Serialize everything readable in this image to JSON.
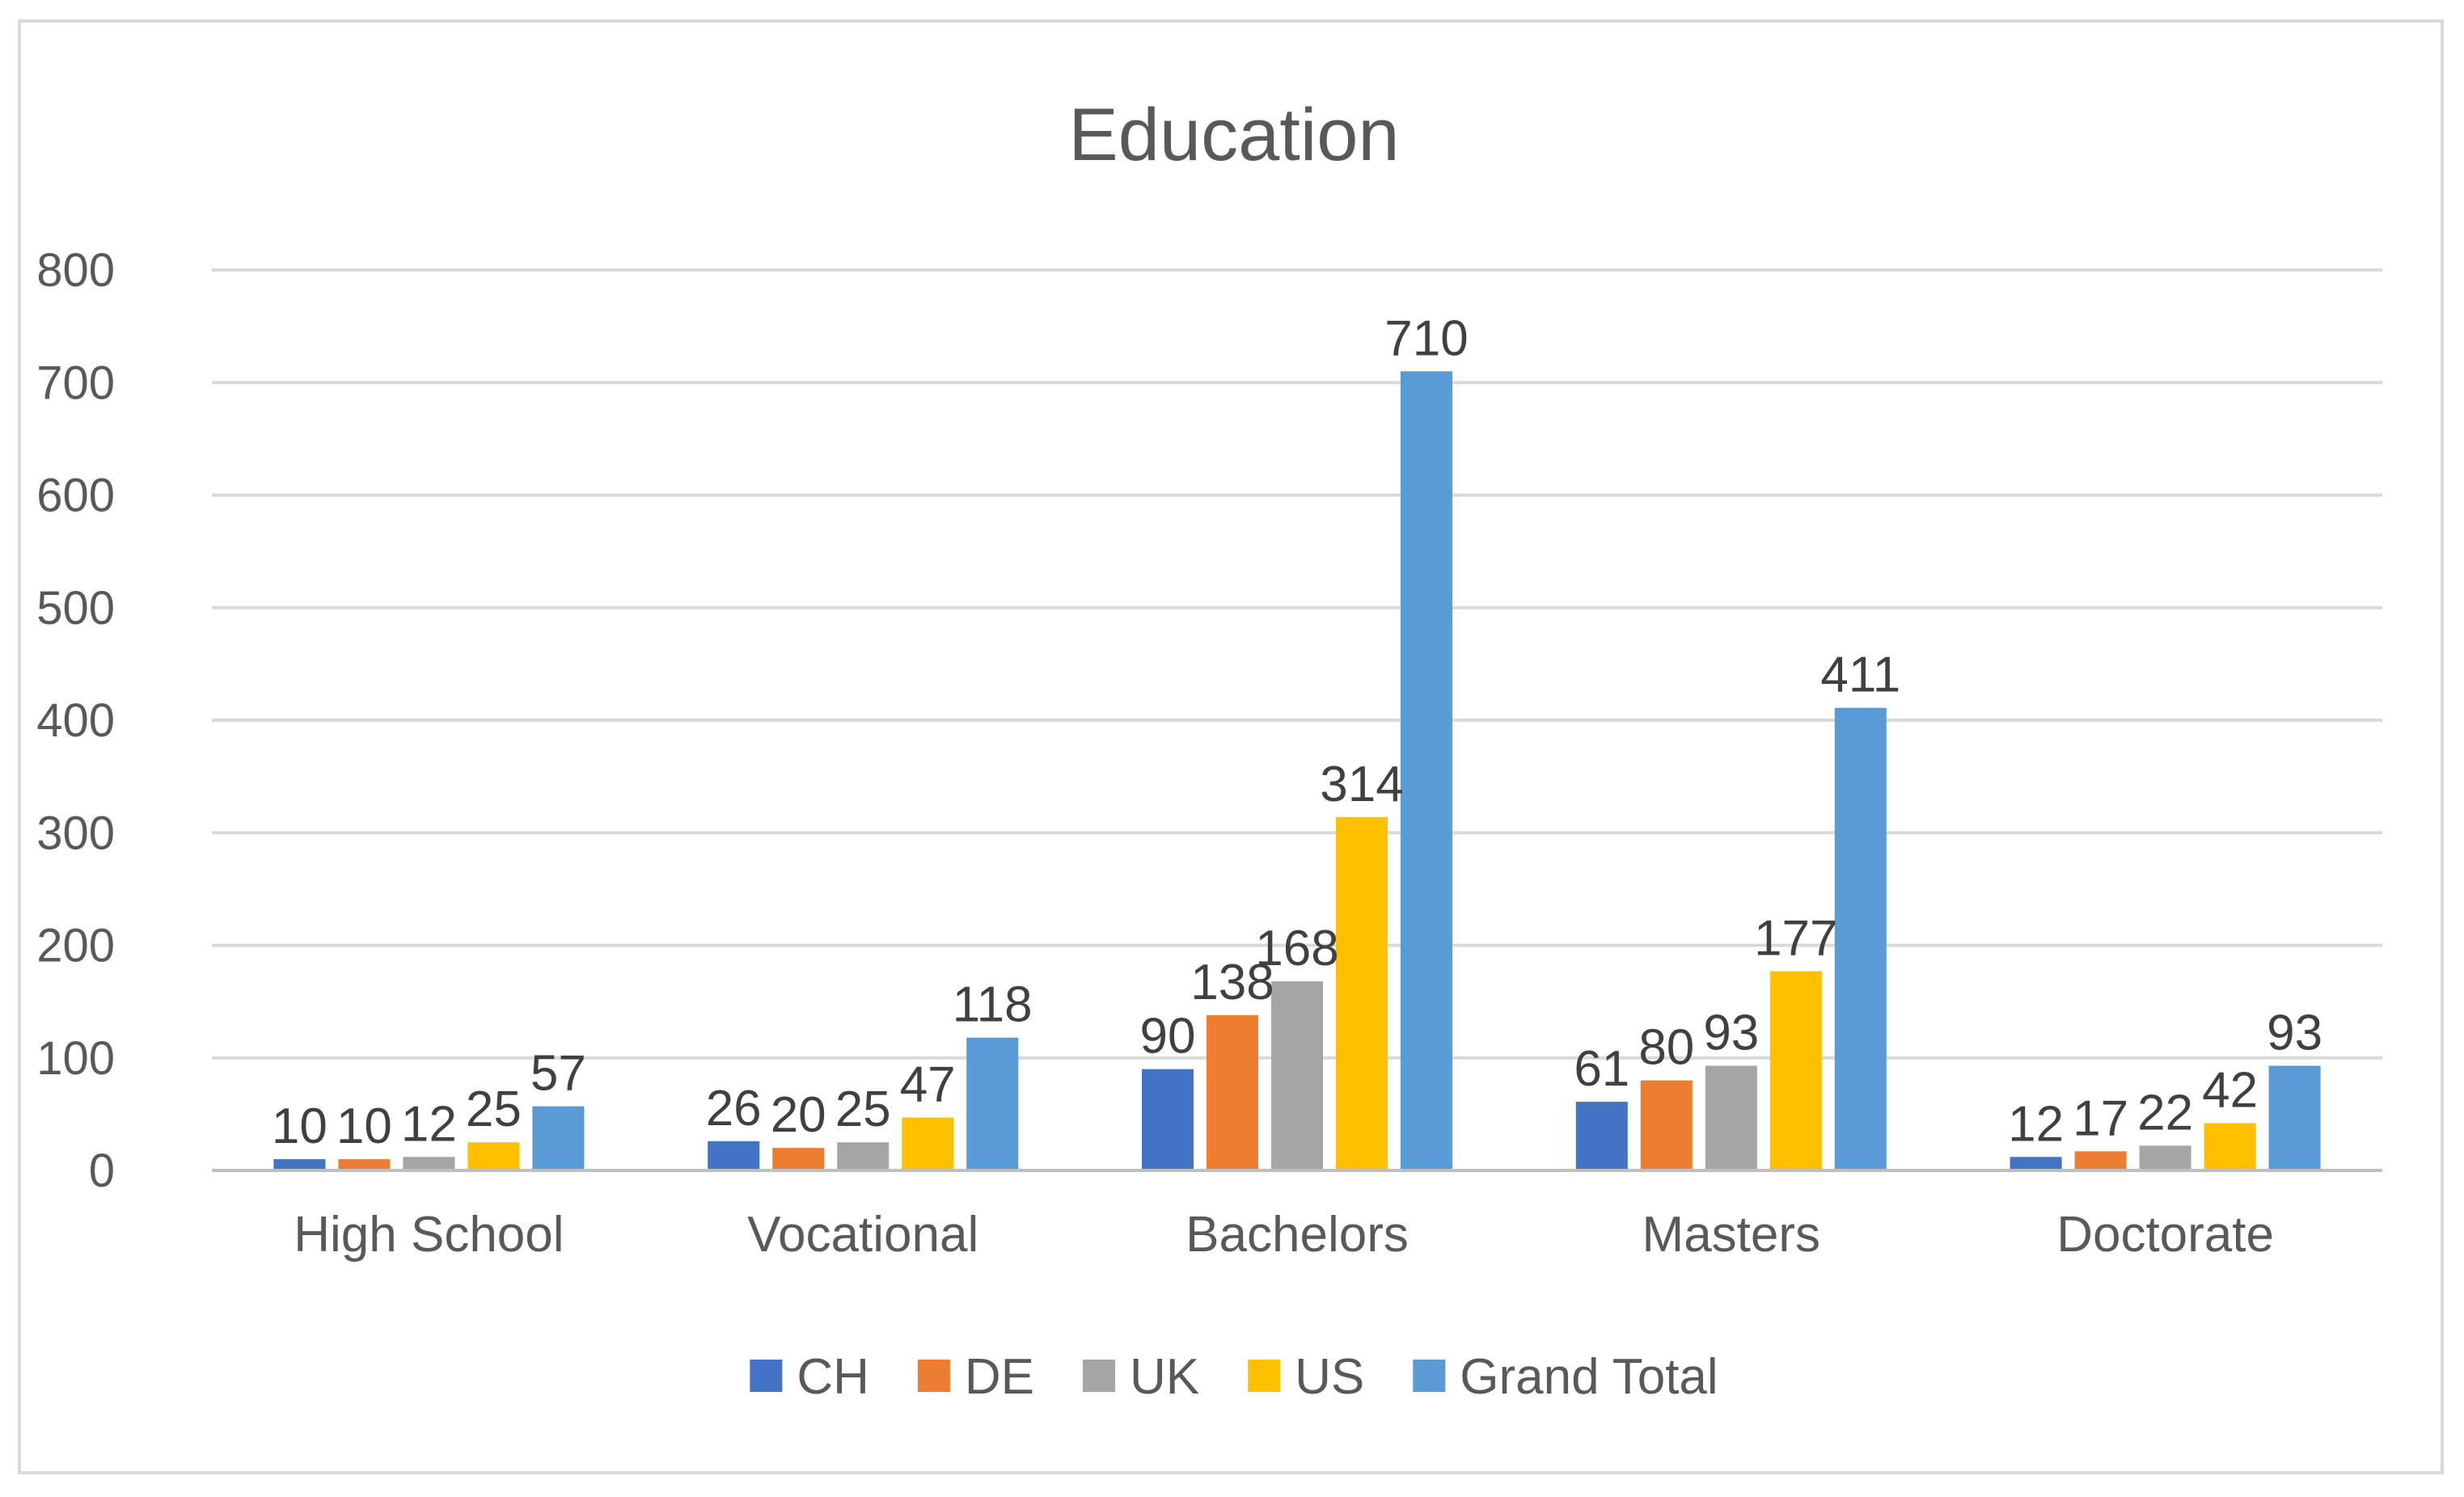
{
  "chart_data": {
    "type": "bar",
    "title": "Education",
    "xlabel": "",
    "ylabel": "",
    "ylim": [
      0,
      800
    ],
    "yticks": [
      0,
      100,
      200,
      300,
      400,
      500,
      600,
      700,
      800
    ],
    "grid": true,
    "legend_position": "bottom",
    "categories": [
      "High School",
      "Vocational",
      "Bachelors",
      "Masters",
      "Doctorate"
    ],
    "series": [
      {
        "name": "CH",
        "color": "#4472C4",
        "values": [
          10,
          26,
          90,
          61,
          12
        ]
      },
      {
        "name": "DE",
        "color": "#ED7D31",
        "values": [
          10,
          20,
          138,
          80,
          17
        ]
      },
      {
        "name": "UK",
        "color": "#A5A5A5",
        "values": [
          12,
          25,
          168,
          93,
          22
        ]
      },
      {
        "name": "US",
        "color": "#FFC000",
        "values": [
          25,
          47,
          314,
          177,
          42
        ]
      },
      {
        "name": "Grand Total",
        "color": "#5B9BD5",
        "values": [
          57,
          118,
          710,
          411,
          93
        ]
      }
    ]
  }
}
